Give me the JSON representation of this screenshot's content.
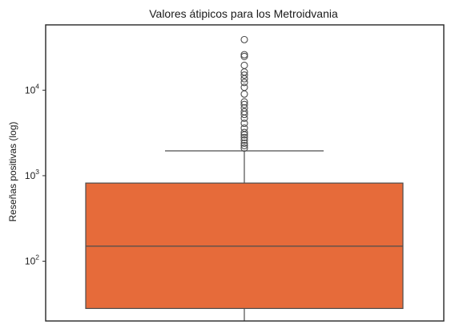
{
  "chart_data": {
    "type": "box",
    "title": "Valores átipicos para los Metroidvania",
    "xlabel": "",
    "ylabel": "Reseñas positivas (log)",
    "yscale": "log",
    "ylim": [
      20,
      58000
    ],
    "yticks": [
      {
        "value": 100,
        "base": "10",
        "exp": "2"
      },
      {
        "value": 1000,
        "base": "10",
        "exp": "3"
      },
      {
        "value": 10000,
        "base": "10",
        "exp": "4"
      }
    ],
    "grid": false,
    "box_color": "#E66B3A",
    "line_color": "#4d4d4d",
    "box": {
      "whisker_low": 20,
      "q1": 28,
      "median": 150,
      "q3": 820,
      "whisker_high": 1950
    },
    "outliers": [
      2100,
      2250,
      2400,
      2600,
      2800,
      3000,
      3200,
      3600,
      4100,
      4700,
      5200,
      5600,
      6200,
      6800,
      7300,
      9000,
      10800,
      12300,
      13600,
      15000,
      16300,
      19500,
      24800,
      26000,
      39000
    ]
  }
}
